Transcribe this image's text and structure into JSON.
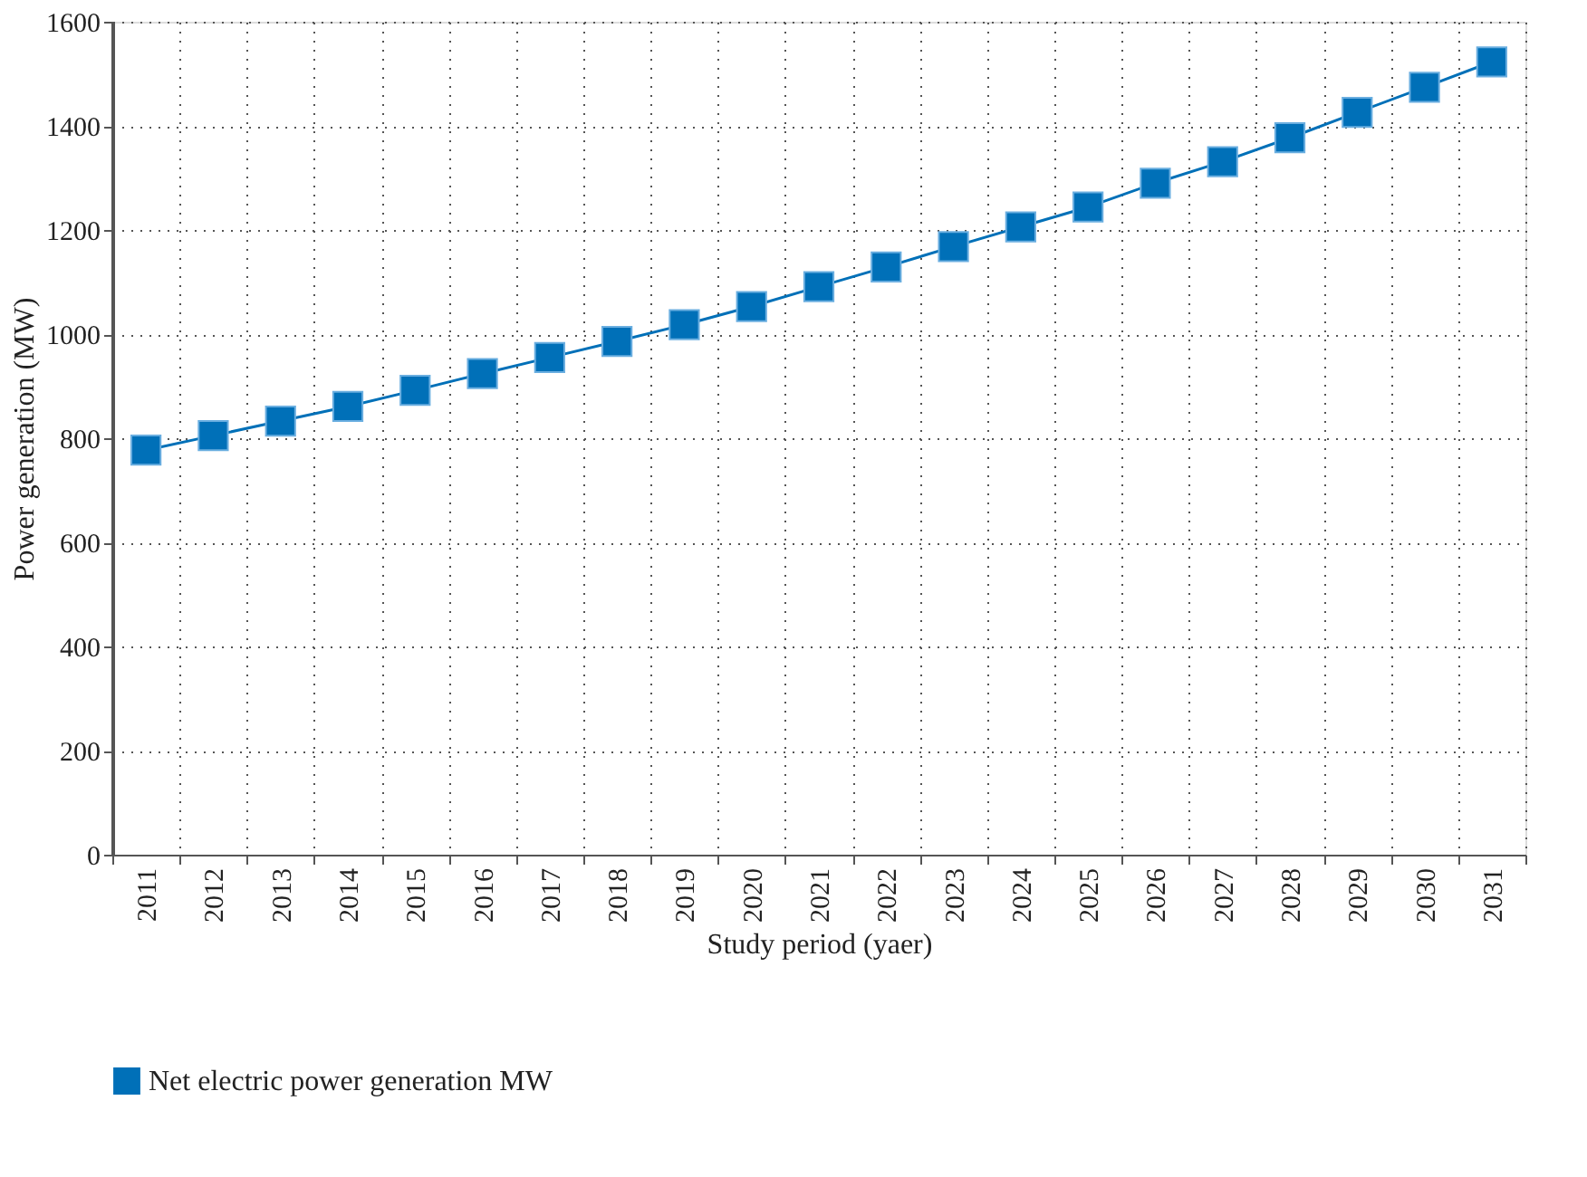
{
  "chart_data": {
    "type": "line",
    "xlabel": "Study period (yaer)",
    "ylabel": "Power generation (MW)",
    "categories": [
      "2011",
      "2012",
      "2013",
      "2014",
      "2015",
      "2016",
      "2017",
      "2018",
      "2019",
      "2020",
      "2021",
      "2022",
      "2023",
      "2024",
      "2025",
      "2026",
      "2027",
      "2028",
      "2029",
      "2030",
      "2031"
    ],
    "series": [
      {
        "name": "Net electric power generation MW",
        "color": "#0070b8",
        "values": [
          777,
          805,
          833,
          861,
          892,
          924,
          955,
          986,
          1018,
          1053,
          1091,
          1129,
          1168,
          1206,
          1244,
          1290,
          1331,
          1377,
          1426,
          1474,
          1523
        ]
      }
    ],
    "ylim": [
      0,
      1600
    ],
    "yticks": [
      0,
      200,
      400,
      600,
      800,
      1000,
      1200,
      1400,
      1600
    ],
    "grid": true,
    "legend": "bottom",
    "marker": "square",
    "line_style": "solid"
  }
}
